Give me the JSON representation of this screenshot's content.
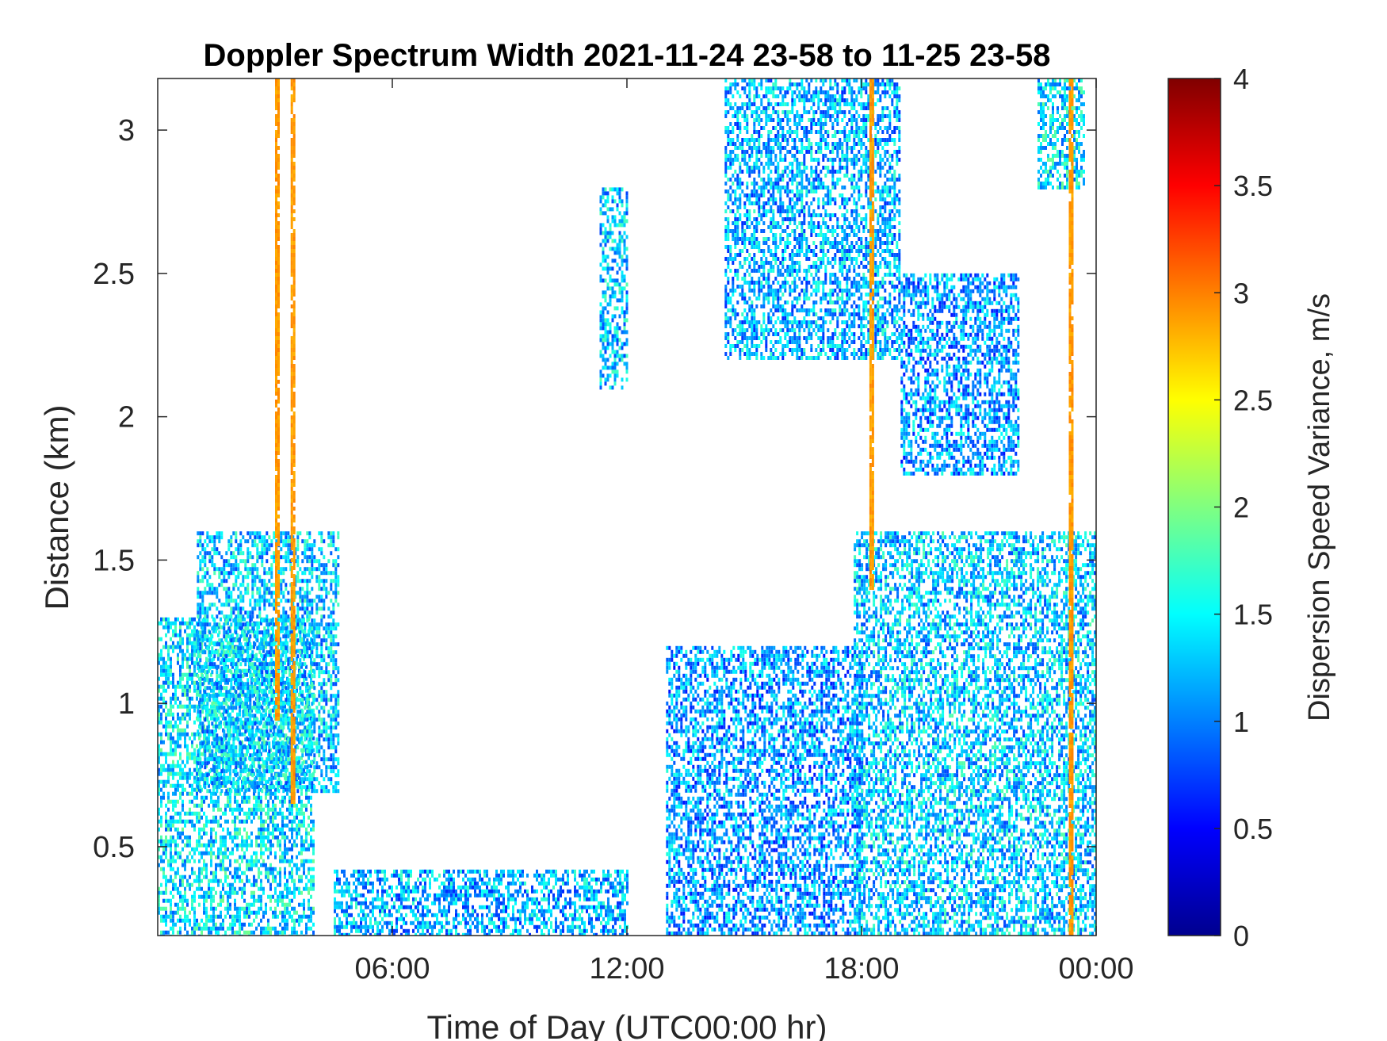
{
  "chart_data": {
    "type": "heatmap",
    "title": "Doppler Spectrum Width 2021-11-24 23-58 to 11-25 23-58",
    "xlabel": "Time of Day (UTC00:00 hr)",
    "ylabel": "Distance (km)",
    "xlim": [
      0,
      24
    ],
    "ylim": [
      0.19,
      3.18
    ],
    "xticks": [
      6,
      12,
      18,
      24
    ],
    "xtick_labels": [
      "06:00",
      "12:00",
      "18:00",
      "00:00"
    ],
    "yticks": [
      0.5,
      1,
      1.5,
      2,
      2.5,
      3
    ],
    "ytick_labels": [
      "0.5",
      "1",
      "1.5",
      "2",
      "2.5",
      "3"
    ],
    "colorbar": {
      "label": "Dispersion Speed Variance, m/s",
      "range": [
        0,
        4
      ],
      "ticks": [
        0,
        0.5,
        1,
        1.5,
        2,
        2.5,
        3,
        3.5,
        4
      ],
      "tick_labels": [
        "0",
        "0.5",
        "1",
        "1.5",
        "2",
        "2.5",
        "3",
        "3.5",
        "4"
      ],
      "colormap": "jet",
      "stops": [
        "#00008f",
        "#0000ff",
        "#0080ff",
        "#00ffff",
        "#80ff80",
        "#ffff00",
        "#ff8000",
        "#ff0000",
        "#800000"
      ]
    },
    "regions": [
      {
        "name": "early-morning-layer",
        "t": [
          0,
          4.0
        ],
        "z": [
          0.19,
          1.3
        ],
        "value": 1.4
      },
      {
        "name": "morning-mid-layer",
        "t": [
          1.0,
          4.6
        ],
        "z": [
          0.7,
          1.6
        ],
        "value": 1.3
      },
      {
        "name": "orange-streak-a",
        "t": [
          3.0,
          3.1
        ],
        "z": [
          0.95,
          3.18
        ],
        "value": 2.9
      },
      {
        "name": "orange-streak-b",
        "t": [
          3.4,
          3.5
        ],
        "z": [
          0.65,
          3.18
        ],
        "value": 2.9
      },
      {
        "name": "surface-layer-midday",
        "t": [
          4.5,
          12.0
        ],
        "z": [
          0.19,
          0.42
        ],
        "value": 1.2
      },
      {
        "name": "upper-plume-noon",
        "t": [
          11.3,
          12.0
        ],
        "z": [
          2.1,
          2.8
        ],
        "value": 1.3
      },
      {
        "name": "afternoon-mixing-layer",
        "t": [
          13.0,
          18.0
        ],
        "z": [
          0.19,
          1.2
        ],
        "value": 1.1
      },
      {
        "name": "afternoon-upper-cloud",
        "t": [
          14.5,
          19.0
        ],
        "z": [
          2.2,
          3.18
        ],
        "value": 1.2
      },
      {
        "name": "evening-deep-layer",
        "t": [
          17.8,
          24.0
        ],
        "z": [
          0.19,
          1.6
        ],
        "value": 1.3
      },
      {
        "name": "evening-upper-patches",
        "t": [
          19.0,
          22.0
        ],
        "z": [
          1.8,
          2.5
        ],
        "value": 1.1
      },
      {
        "name": "late-upper-patch",
        "t": [
          22.5,
          23.7
        ],
        "z": [
          2.8,
          3.18
        ],
        "value": 1.4
      },
      {
        "name": "orange-streak-c",
        "t": [
          18.2,
          18.3
        ],
        "z": [
          1.4,
          3.18
        ],
        "value": 2.9
      },
      {
        "name": "orange-streak-d",
        "t": [
          23.3,
          23.38
        ],
        "z": [
          0.19,
          3.18
        ],
        "value": 2.9
      }
    ]
  }
}
